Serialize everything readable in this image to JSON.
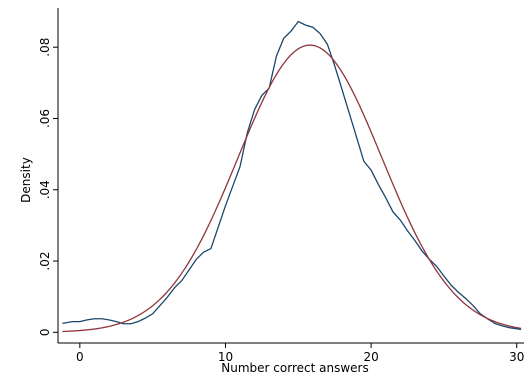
{
  "chart_data": {
    "type": "line",
    "xlabel": "Number correct answers",
    "ylabel": "Density",
    "xlim": [
      -1.5,
      30.5
    ],
    "ylim": [
      -0.003,
      0.091
    ],
    "x_ticks": [
      0,
      10,
      20,
      30
    ],
    "x_tick_labels": [
      "0",
      "10",
      "20",
      "30"
    ],
    "y_ticks": [
      0,
      0.02,
      0.04,
      0.06,
      0.08
    ],
    "y_tick_labels": [
      "0",
      ".02",
      ".04",
      ".06",
      ".08"
    ],
    "grid": false,
    "legend": "none",
    "series": [
      {
        "color": "#1a476f",
        "x": [
          -1.2,
          -0.5,
          0,
          0.5,
          1,
          1.5,
          2,
          2.5,
          3,
          3.5,
          4,
          4.5,
          5,
          5.5,
          6,
          6.5,
          7,
          7.5,
          8,
          8.5,
          9,
          9.5,
          10,
          10.5,
          11,
          11.5,
          12,
          12.5,
          13,
          13.5,
          14,
          14.5,
          15,
          15.5,
          16,
          16.5,
          17,
          17.5,
          18,
          18.5,
          19,
          19.5,
          20,
          20.5,
          21,
          21.5,
          22,
          22.5,
          23,
          23.5,
          24,
          24.5,
          25,
          25.5,
          26,
          26.5,
          27,
          27.5,
          28,
          28.5,
          29,
          29.5,
          30,
          30.3
        ],
        "y": [
          0.0025,
          0.003,
          0.003,
          0.0035,
          0.0038,
          0.0038,
          0.0035,
          0.003,
          0.0024,
          0.0024,
          0.003,
          0.004,
          0.0052,
          0.0075,
          0.0098,
          0.0125,
          0.0145,
          0.0175,
          0.0205,
          0.0225,
          0.0235,
          0.0295,
          0.0355,
          0.041,
          0.0465,
          0.056,
          0.0625,
          0.0665,
          0.0685,
          0.0775,
          0.0825,
          0.0845,
          0.0872,
          0.0862,
          0.0856,
          0.0838,
          0.0808,
          0.0748,
          0.0682,
          0.0615,
          0.0548,
          0.048,
          0.0455,
          0.0415,
          0.0378,
          0.0338,
          0.0315,
          0.0285,
          0.0258,
          0.0228,
          0.0205,
          0.0185,
          0.0158,
          0.0132,
          0.0112,
          0.0095,
          0.0075,
          0.0052,
          0.0038,
          0.0025,
          0.0018,
          0.0013,
          0.001,
          0.0008
        ]
      },
      {
        "color": "#90353b",
        "normal": {
          "mean": 15.8,
          "sd": 4.95,
          "from": -1.2,
          "to": 30.3
        }
      }
    ]
  }
}
